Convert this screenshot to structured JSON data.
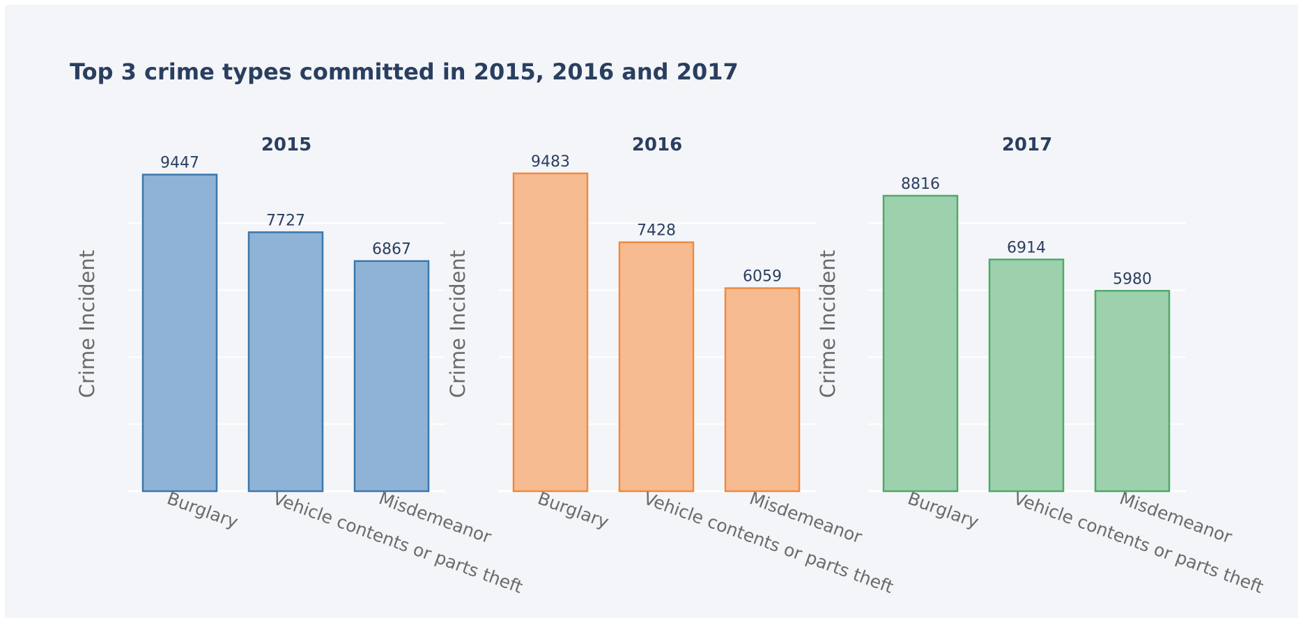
{
  "title": "Top 3 crime types committed in 2015, 2016 and 2017",
  "chart_data": [
    {
      "type": "bar",
      "title": "2015",
      "ylabel": "Crime Incident",
      "categories": [
        "Burglary",
        "Vehicle contents or parts theft",
        "Misdemeanor"
      ],
      "values": [
        9447,
        7727,
        6867
      ],
      "ylim": [
        0,
        10000
      ],
      "grid": true,
      "colors": {
        "fill": "#8eb3d6",
        "stroke": "#3a77ac"
      }
    },
    {
      "type": "bar",
      "title": "2016",
      "ylabel": "Crime Incident",
      "categories": [
        "Burglary",
        "Vehicle contents or parts theft",
        "Misdemeanor"
      ],
      "values": [
        9483,
        7428,
        6059
      ],
      "ylim": [
        0,
        10000
      ],
      "grid": true,
      "colors": {
        "fill": "#f7bb91",
        "stroke": "#f08a3c"
      }
    },
    {
      "type": "bar",
      "title": "2017",
      "ylabel": "Crime Incident",
      "categories": [
        "Burglary",
        "Vehicle contents or parts theft",
        "Misdemeanor"
      ],
      "values": [
        8816,
        6914,
        5980
      ],
      "ylim": [
        0,
        10000
      ],
      "grid": true,
      "colors": {
        "fill": "#9dd1ad",
        "stroke": "#4fa86a"
      }
    }
  ]
}
